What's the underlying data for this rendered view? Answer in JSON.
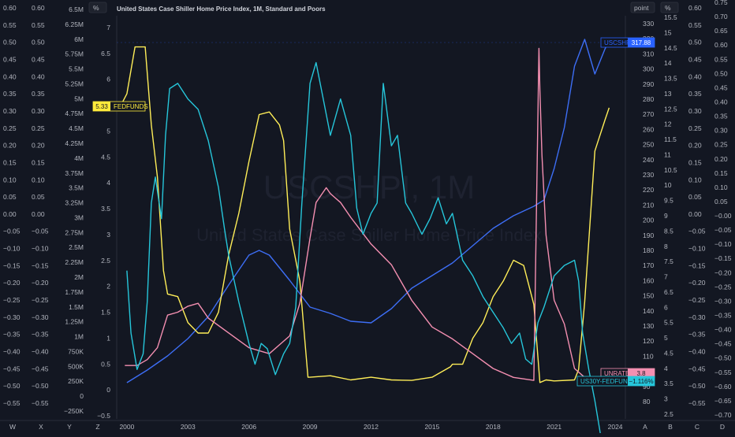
{
  "header": {
    "title": "United States Case Shiller Home Price Index, 1M, Standard and Poors",
    "watermark_symbol": "USCSHPI, 1M",
    "watermark_name": "United States Case Shiller Home Price Index"
  },
  "axis_units": {
    "left_pct": "%",
    "right_point": "point",
    "right_pct": "%"
  },
  "x_axis_ticks": [
    "2000",
    "2003",
    "2006",
    "2009",
    "2012",
    "2015",
    "2018",
    "2021",
    "2024"
  ],
  "corner_letters": {
    "bottom": [
      "W",
      "X",
      "Y",
      "Z"
    ],
    "bottom_right": [
      "A",
      "B",
      "C",
      "D"
    ]
  },
  "left_scales": {
    "col_a": [
      "0.60",
      "0.55",
      "0.50",
      "0.45",
      "0.40",
      "0.35",
      "0.30",
      "0.25",
      "0.20",
      "0.15",
      "0.10",
      "0.05",
      "0.00",
      "−0.05",
      "−0.10",
      "−0.15",
      "−0.20",
      "−0.25",
      "−0.30",
      "−0.35",
      "−0.40",
      "−0.45",
      "−0.50",
      "−0.55"
    ],
    "col_b": [
      "0.60",
      "0.55",
      "0.50",
      "0.45",
      "0.40",
      "0.35",
      "0.30",
      "0.25",
      "0.20",
      "0.15",
      "0.10",
      "0.05",
      "0.00",
      "−0.05",
      "−0.10",
      "−0.15",
      "−0.20",
      "−0.25",
      "−0.30",
      "−0.35",
      "−0.40",
      "−0.45",
      "−0.50",
      "−0.55"
    ],
    "col_c": [
      "6.5M",
      "6.25M",
      "6M",
      "5.75M",
      "5.5M",
      "5.25M",
      "5M",
      "4.75M",
      "4.5M",
      "4.25M",
      "4M",
      "3.75M",
      "3.5M",
      "3.25M",
      "3M",
      "2.75M",
      "2.5M",
      "2.25M",
      "2M",
      "1.75M",
      "1.5M",
      "1.25M",
      "1M",
      "750K",
      "500K",
      "250K",
      "0",
      "−250K"
    ],
    "col_d": [
      "7",
      "6.5",
      "6",
      "5.5",
      "5",
      "4.5",
      "4",
      "3.5",
      "3",
      "2.5",
      "2",
      "1.5",
      "1",
      "0.5",
      "0",
      "−0.5"
    ]
  },
  "right_scales": {
    "point": [
      "330",
      "320",
      "310",
      "300",
      "290",
      "280",
      "270",
      "260",
      "250",
      "240",
      "230",
      "220",
      "210",
      "200",
      "190",
      "180",
      "170",
      "160",
      "150",
      "140",
      "130",
      "120",
      "110",
      "100",
      "90",
      "80"
    ],
    "pct": [
      "15.5",
      "15",
      "14.5",
      "14",
      "13.5",
      "13",
      "12.5",
      "12",
      "11.5",
      "11",
      "10.5",
      "10",
      "9.5",
      "9",
      "8.5",
      "8",
      "7.5",
      "7",
      "6.5",
      "6",
      "5.5",
      "5",
      "4.5",
      "4",
      "3.5",
      "3",
      "2.5"
    ],
    "col_e": [
      "0.60",
      "0.55",
      "0.50",
      "0.45",
      "0.40",
      "0.35",
      "0.30",
      "0.25",
      "0.20",
      "0.15",
      "0.10",
      "0.05",
      "0.00",
      "−0.05",
      "−0.10",
      "−0.15",
      "−0.20",
      "−0.25",
      "−0.30",
      "−0.35",
      "−0.40",
      "−0.45",
      "−0.50",
      "−0.55"
    ],
    "col_f": [
      "0.75",
      "0.70",
      "0.65",
      "0.60",
      "0.55",
      "0.50",
      "0.45",
      "0.40",
      "0.35",
      "0.30",
      "0.25",
      "0.20",
      "0.15",
      "0.10",
      "0.05",
      "−0.00",
      "−0.05",
      "−0.10",
      "−0.15",
      "−0.20",
      "−0.25",
      "−0.30",
      "−0.35",
      "−0.40",
      "−0.45",
      "−0.50",
      "−0.55",
      "−0.60",
      "−0.65",
      "−0.70"
    ]
  },
  "tags": [
    {
      "name": "USCSHPI",
      "value": "317.88",
      "color": "#2962ff"
    },
    {
      "name": "FEDFUNDS",
      "value": "5.33",
      "color": "#ffeb3b"
    },
    {
      "name": "UNRATE",
      "value": "3.8",
      "color": "#f48fb1"
    },
    {
      "name": "US30Y-FEDFUNDS",
      "value": "−1.116%",
      "color": "#26c6da"
    }
  ],
  "chart_data": {
    "type": "line",
    "title": "United States Case Shiller Home Price Index, 1M, Standard and Poors",
    "x_range": [
      1999.5,
      2024.5
    ],
    "series": [
      {
        "name": "USCSHPI",
        "color": "#3d6ef5",
        "axis": "point",
        "ylim": [
          77,
          333
        ],
        "x": [
          2000,
          2001,
          2002,
          2003,
          2004,
          2005,
          2006,
          2006.5,
          2007,
          2008,
          2009,
          2010,
          2011,
          2012,
          2013,
          2014,
          2015,
          2016,
          2017,
          2018,
          2019,
          2020,
          2020.5,
          2021,
          2021.5,
          2022,
          2022.5,
          2023,
          2023.5,
          2023.75
        ],
        "y": [
          100,
          108,
          117,
          128,
          142,
          162,
          181,
          184,
          181,
          165,
          148,
          144,
          139,
          138,
          147,
          160,
          168,
          176,
          187,
          198,
          206,
          212,
          216,
          236,
          262,
          301,
          318,
          296,
          312,
          317.88
        ]
      },
      {
        "name": "FEDFUNDS",
        "color": "#ffee58",
        "axis": "left_pct",
        "ylim": [
          -0.65,
          7.1
        ],
        "x": [
          1999.6,
          2000,
          2000.4,
          2000.9,
          2001,
          2001.2,
          2001.5,
          2001.8,
          2002,
          2002.5,
          2003,
          2003.5,
          2004,
          2004.5,
          2005,
          2005.5,
          2006,
          2006.5,
          2007,
          2007.5,
          2007.7,
          2008,
          2008.5,
          2008.9,
          2009,
          2010,
          2011,
          2012,
          2013,
          2014,
          2015,
          2015.9,
          2016,
          2016.5,
          2017,
          2017.5,
          2018,
          2018.5,
          2019,
          2019.5,
          2019.7,
          2020,
          2020.3,
          2020.6,
          2021,
          2022,
          2022.2,
          2022.5,
          2023,
          2023.5,
          2023.7
        ],
        "y": [
          5.3,
          5.6,
          6.5,
          6.5,
          6.0,
          5.0,
          4.0,
          2.2,
          1.75,
          1.7,
          1.2,
          1.0,
          1.0,
          1.4,
          2.5,
          3.3,
          4.3,
          5.2,
          5.25,
          5.0,
          4.7,
          3.0,
          2.0,
          0.15,
          0.15,
          0.18,
          0.1,
          0.15,
          0.1,
          0.09,
          0.15,
          0.35,
          0.4,
          0.4,
          0.9,
          1.2,
          1.7,
          2.0,
          2.4,
          2.3,
          2.0,
          1.55,
          0.05,
          0.1,
          0.08,
          0.1,
          0.3,
          1.6,
          4.5,
          5.1,
          5.33
        ]
      },
      {
        "name": "UNRATE",
        "color": "#f48fb1",
        "axis": "right_pct",
        "ylim": [
          2.2,
          15.8
        ],
        "x": [
          1999.9,
          2000.5,
          2001,
          2001.5,
          2002,
          2002.5,
          2003,
          2003.5,
          2004,
          2005,
          2006,
          2007,
          2007.5,
          2008,
          2008.5,
          2009,
          2009.3,
          2009.8,
          2010,
          2010.5,
          2011,
          2012,
          2013,
          2014,
          2015,
          2016,
          2017,
          2018,
          2019,
          2020,
          2020.25,
          2020.3,
          2020.4,
          2020.6,
          2021,
          2021.5,
          2022,
          2022.5,
          2023,
          2023.5,
          2023.7
        ],
        "y": [
          4.0,
          4.0,
          4.2,
          4.6,
          5.7,
          5.8,
          6.0,
          6.1,
          5.6,
          5.1,
          4.6,
          4.4,
          4.7,
          5.0,
          6.1,
          8.3,
          9.5,
          10.0,
          9.8,
          9.5,
          9.0,
          8.1,
          7.4,
          6.2,
          5.3,
          4.9,
          4.4,
          3.9,
          3.6,
          3.5,
          14.7,
          13.3,
          11.1,
          8.4,
          6.2,
          5.4,
          3.9,
          3.6,
          3.5,
          3.6,
          3.8
        ]
      },
      {
        "name": "US30Y-FEDFUNDS",
        "color": "#26c6da",
        "axis": "left_pct",
        "ylim": [
          -0.65,
          7.1
        ],
        "x": [
          2000,
          2000.2,
          2000.5,
          2000.8,
          2001,
          2001.2,
          2001.4,
          2001.7,
          2001.9,
          2002.1,
          2002.5,
          2003,
          2003.5,
          2004,
          2004.5,
          2004.8,
          2005,
          2005.5,
          2006,
          2006.3,
          2006.6,
          2006.9,
          2007.3,
          2007.7,
          2008,
          2008.3,
          2008.6,
          2009,
          2009.3,
          2009.6,
          2010,
          2010.5,
          2011,
          2011.3,
          2011.6,
          2012,
          2012.3,
          2012.6,
          2013,
          2013.3,
          2013.7,
          2014,
          2014.5,
          2014.9,
          2015.3,
          2015.7,
          2016,
          2016.5,
          2017,
          2017.5,
          2018,
          2018.5,
          2018.9,
          2019.3,
          2019.6,
          2019.9,
          2020.2,
          2020.5,
          2021,
          2021.5,
          2022,
          2022.2,
          2022.4,
          2022.7,
          2023,
          2023.3,
          2023.5,
          2023.75
        ],
        "y": [
          2.2,
          1.0,
          0.3,
          0.6,
          1.6,
          3.5,
          4.0,
          3.2,
          4.8,
          5.7,
          5.8,
          5.5,
          5.3,
          4.7,
          3.8,
          3.0,
          2.5,
          1.6,
          0.8,
          0.4,
          0.8,
          0.7,
          0.2,
          0.6,
          0.8,
          1.5,
          3.5,
          5.8,
          6.2,
          5.6,
          4.8,
          5.5,
          4.8,
          3.4,
          2.9,
          3.3,
          3.5,
          5.8,
          4.6,
          4.8,
          3.5,
          3.3,
          2.9,
          3.2,
          3.6,
          3.1,
          3.3,
          2.4,
          2.1,
          1.7,
          1.4,
          1.1,
          0.8,
          1.0,
          0.5,
          0.4,
          1.2,
          1.5,
          2.1,
          2.3,
          2.4,
          2.0,
          1.0,
          0.3,
          -0.3,
          -1.0,
          -1.4,
          -1.116
        ]
      }
    ]
  }
}
